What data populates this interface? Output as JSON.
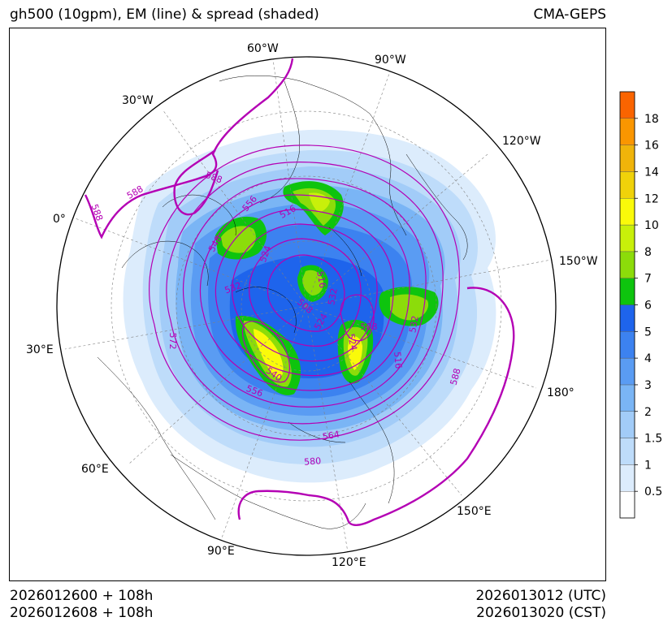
{
  "header": {
    "title": "gh500 (10gpm), EM (line) & spread (shaded)",
    "model": "CMA-GEPS"
  },
  "footer": {
    "init_utc": "2026012600 + 108h",
    "init_cst": "2026012608 + 108h",
    "valid_utc": "2026013012 (UTC)",
    "valid_cst": "2026013020 (CST)"
  },
  "map": {
    "projection": "north polar stereographic",
    "longitude_labels": [
      "60°W",
      "90°W",
      "30°W",
      "120°W",
      "0°",
      "150°W",
      "30°E",
      "180°",
      "60°E",
      "150°E",
      "90°E",
      "120°E"
    ],
    "contour_labels": [
      "588",
      "588",
      "588",
      "556",
      "516",
      "548",
      "524",
      "516",
      "532",
      "508",
      "532",
      "524",
      "532",
      "508",
      "572",
      "524",
      "516",
      "540",
      "556",
      "564",
      "580",
      "588"
    ],
    "colors": {
      "em_line": "#b400b4",
      "coast": "#000000",
      "grid": "#808080"
    }
  },
  "colorbar": {
    "levels": [
      "0.5",
      "1",
      "1.5",
      "2",
      "3",
      "4",
      "5",
      "6",
      "7",
      "8",
      "10",
      "12",
      "14",
      "16",
      "18"
    ],
    "colors": [
      "#ffffff",
      "#dcecfc",
      "#bedcfa",
      "#a2ccf8",
      "#7ab5f5",
      "#5a9cf3",
      "#3c82f0",
      "#1e64ec",
      "#0ec40e",
      "#8cdc0a",
      "#c8f00a",
      "#fafa0a",
      "#f0d20a",
      "#f0b40a",
      "#fa9600",
      "#fa6400"
    ]
  }
}
